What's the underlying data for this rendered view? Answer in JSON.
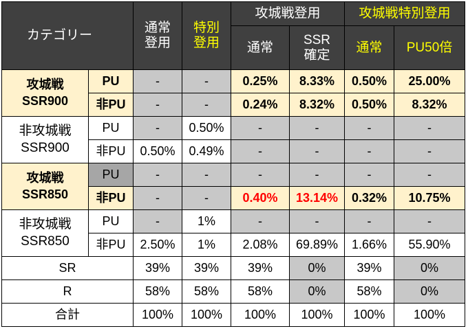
{
  "header": {
    "category": "カテゴリー",
    "normal_use": "通常\n登用",
    "special_use": "特別\n登用",
    "siege_use": "攻城戦登用",
    "siege_special_use": "攻城戦特別登用",
    "siege_normal": "通常",
    "siege_ssr": "SSR\n確定",
    "siege_special_normal": "通常",
    "siege_special_pu50": "PU50倍"
  },
  "groups": {
    "g1": "攻城戦\nSSR900",
    "g2": "非攻城戦\nSSR900",
    "g3": "攻城戦\nSSR850",
    "g4": "非攻城戦\nSSR850"
  },
  "labels": {
    "pu": "PU",
    "non_pu": "非PU"
  },
  "rows": [
    [
      "-",
      "-",
      "0.25%",
      "8.33%",
      "0.50%",
      "25.00%"
    ],
    [
      "-",
      "-",
      "0.24%",
      "8.32%",
      "0.50%",
      "8.32%"
    ],
    [
      "-",
      "0.50%",
      "-",
      "-",
      "-",
      "-"
    ],
    [
      "0.50%",
      "0.49%",
      "-",
      "-",
      "-",
      "-"
    ],
    [
      "-",
      "-",
      "-",
      "-",
      "-",
      "-"
    ],
    [
      "-",
      "-",
      "0.40%",
      "13.14%",
      "0.32%",
      "10.75%"
    ],
    [
      "-",
      "1%",
      "-",
      "-",
      "-",
      "-"
    ],
    [
      "2.50%",
      "1%",
      "2.08%",
      "69.89%",
      "1.66%",
      "55.90%"
    ]
  ],
  "bottom": [
    {
      "label": "SR",
      "values": [
        "39%",
        "39%",
        "39%",
        "0%",
        "39%",
        "0%"
      ]
    },
    {
      "label": "R",
      "values": [
        "58%",
        "58%",
        "58%",
        "0%",
        "58%",
        "0%"
      ]
    },
    {
      "label": "合計",
      "values": [
        "100%",
        "100%",
        "100%",
        "100%",
        "100%",
        "100%"
      ]
    }
  ],
  "colors": {
    "header_bg": "#404040",
    "header_yellow": "#ffff00",
    "highlight_row": "#fff2cc",
    "gray_cell": "#c8c8c8",
    "dark_gray_cell": "#a6a6a6",
    "red_value": "#ff0000"
  }
}
